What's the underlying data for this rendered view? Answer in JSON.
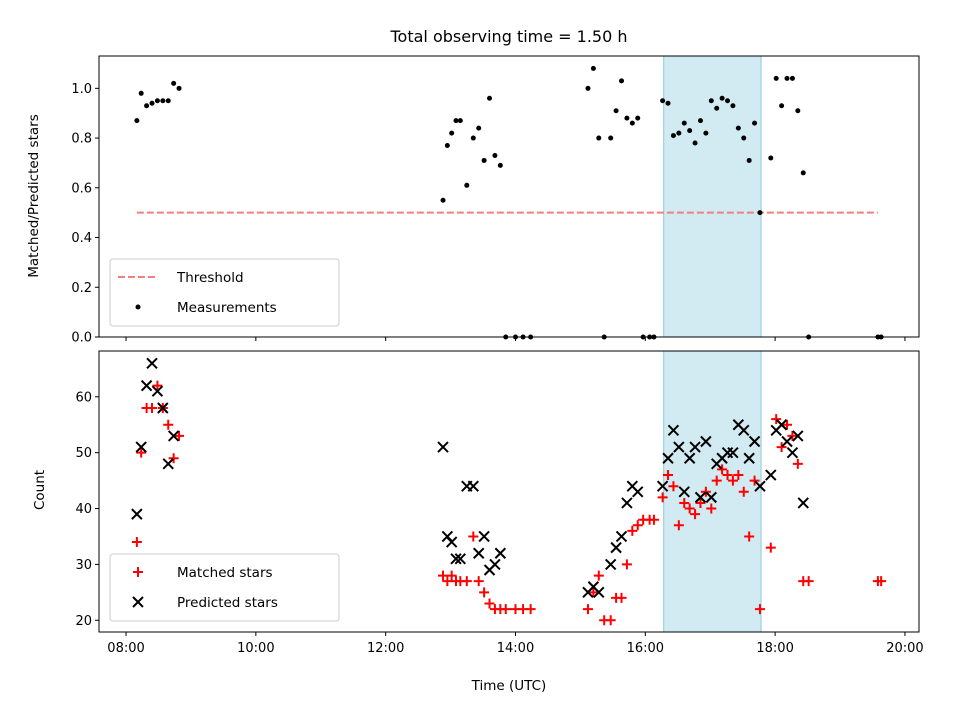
{
  "chart_data": [
    {
      "type": "scatter",
      "title": "Total observing time = 1.50 h",
      "ylabel": "Matched/Predicted stars",
      "xlabel": "",
      "xlim": [
        "07:35",
        "20:13"
      ],
      "ylim": [
        0.0,
        1.13
      ],
      "x_ticks": [
        "08:00",
        "10:00",
        "12:00",
        "14:00",
        "16:00",
        "18:00",
        "20:00"
      ],
      "y_ticks": [
        "0.0",
        "0.2",
        "0.4",
        "0.6",
        "0.8",
        "1.0"
      ],
      "legend_position": "lower-left",
      "shaded_interval": {
        "start": "16:17",
        "end": "17:47",
        "color": "#add8e6"
      },
      "series": [
        {
          "name": "Threshold",
          "style": "dashed-line",
          "color": "#f08080",
          "points": [
            [
              "08:10",
              0.5
            ],
            [
              "19:35",
              0.5
            ]
          ]
        },
        {
          "name": "Measurements",
          "style": "dot",
          "color": "#000000",
          "points": [
            [
              "08:10",
              0.87
            ],
            [
              "08:14",
              0.98
            ],
            [
              "08:19",
              0.93
            ],
            [
              "08:24",
              0.94
            ],
            [
              "08:29",
              0.95
            ],
            [
              "08:34",
              0.95
            ],
            [
              "08:39",
              0.95
            ],
            [
              "08:44",
              1.02
            ],
            [
              "08:49",
              1.0
            ],
            [
              "12:53",
              0.55
            ],
            [
              "12:57",
              0.77
            ],
            [
              "13:01",
              0.82
            ],
            [
              "13:05",
              0.87
            ],
            [
              "13:09",
              0.87
            ],
            [
              "13:15",
              0.61
            ],
            [
              "13:21",
              0.8
            ],
            [
              "13:26",
              0.84
            ],
            [
              "13:31",
              0.71
            ],
            [
              "13:36",
              0.96
            ],
            [
              "13:41",
              0.73
            ],
            [
              "13:46",
              0.69
            ],
            [
              "13:51",
              0.0
            ],
            [
              "14:00",
              0.0
            ],
            [
              "14:07",
              0.0
            ],
            [
              "14:14",
              0.0
            ],
            [
              "15:07",
              1.0
            ],
            [
              "15:12",
              1.08
            ],
            [
              "15:17",
              0.8
            ],
            [
              "15:22",
              0.0
            ],
            [
              "15:28",
              0.8
            ],
            [
              "15:33",
              0.91
            ],
            [
              "15:38",
              1.03
            ],
            [
              "15:43",
              0.88
            ],
            [
              "15:48",
              0.86
            ],
            [
              "15:53",
              0.88
            ],
            [
              "15:58",
              0.0
            ],
            [
              "16:04",
              0.0
            ],
            [
              "16:08",
              0.0
            ],
            [
              "16:16",
              0.95
            ],
            [
              "16:21",
              0.94
            ],
            [
              "16:26",
              0.81
            ],
            [
              "16:31",
              0.82
            ],
            [
              "16:36",
              0.86
            ],
            [
              "16:41",
              0.83
            ],
            [
              "16:46",
              0.78
            ],
            [
              "16:51",
              0.87
            ],
            [
              "16:56",
              0.82
            ],
            [
              "17:01",
              0.95
            ],
            [
              "17:06",
              0.92
            ],
            [
              "17:11",
              0.96
            ],
            [
              "17:16",
              0.95
            ],
            [
              "17:21",
              0.93
            ],
            [
              "17:26",
              0.84
            ],
            [
              "17:31",
              0.8
            ],
            [
              "17:36",
              0.71
            ],
            [
              "17:41",
              0.86
            ],
            [
              "17:46",
              0.5
            ],
            [
              "17:56",
              0.72
            ],
            [
              "18:01",
              1.04
            ],
            [
              "18:06",
              0.93
            ],
            [
              "18:11",
              1.04
            ],
            [
              "18:16",
              1.04
            ],
            [
              "18:21",
              0.91
            ],
            [
              "18:26",
              0.66
            ],
            [
              "18:31",
              0.0
            ],
            [
              "19:35",
              0.0
            ],
            [
              "19:38",
              0.0
            ]
          ]
        }
      ]
    },
    {
      "type": "scatter",
      "title": "",
      "ylabel": "Count",
      "xlabel": "Time (UTC)",
      "xlim": [
        "07:35",
        "20:13"
      ],
      "ylim": [
        17.9,
        68.2
      ],
      "x_ticks": [
        "08:00",
        "10:00",
        "12:00",
        "14:00",
        "16:00",
        "18:00",
        "20:00"
      ],
      "y_ticks": [
        "20",
        "30",
        "40",
        "50",
        "60"
      ],
      "legend_position": "lower-left",
      "shaded_interval": {
        "start": "16:17",
        "end": "17:47",
        "color": "#add8e6"
      },
      "series": [
        {
          "name": "Matched stars",
          "marker": "plus",
          "color": "#ff0000",
          "points": [
            [
              "08:10",
              34
            ],
            [
              "08:14",
              50
            ],
            [
              "08:19",
              58
            ],
            [
              "08:24",
              58
            ],
            [
              "08:29",
              62
            ],
            [
              "08:34",
              58
            ],
            [
              "08:39",
              55
            ],
            [
              "08:44",
              49
            ],
            [
              "08:49",
              53
            ],
            [
              "12:53",
              28
            ],
            [
              "12:57",
              27
            ],
            [
              "13:01",
              28
            ],
            [
              "13:05",
              27
            ],
            [
              "13:09",
              27
            ],
            [
              "13:15",
              27
            ],
            [
              "13:21",
              35
            ],
            [
              "13:26",
              27
            ],
            [
              "13:31",
              25
            ],
            [
              "13:36",
              23
            ],
            [
              "13:41",
              22
            ],
            [
              "13:46",
              22
            ],
            [
              "13:51",
              22
            ],
            [
              "14:00",
              22
            ],
            [
              "14:07",
              22
            ],
            [
              "14:14",
              22
            ],
            [
              "15:07",
              22
            ],
            [
              "15:12",
              25
            ],
            [
              "15:17",
              28
            ],
            [
              "15:22",
              20
            ],
            [
              "15:28",
              20
            ],
            [
              "15:33",
              24
            ],
            [
              "15:38",
              24
            ],
            [
              "15:43",
              30
            ],
            [
              "15:48",
              36
            ],
            [
              "15:53",
              37
            ],
            [
              "15:58",
              38
            ],
            [
              "16:04",
              38
            ],
            [
              "16:08",
              38
            ],
            [
              "16:16",
              42
            ],
            [
              "16:21",
              46
            ],
            [
              "16:26",
              44
            ],
            [
              "16:31",
              37
            ],
            [
              "16:36",
              41
            ],
            [
              "16:41",
              40
            ],
            [
              "16:46",
              39
            ],
            [
              "16:51",
              41
            ],
            [
              "16:56",
              43
            ],
            [
              "17:01",
              40
            ],
            [
              "17:06",
              45
            ],
            [
              "17:11",
              47
            ],
            [
              "17:16",
              46
            ],
            [
              "17:21",
              45
            ],
            [
              "17:26",
              46
            ],
            [
              "17:31",
              43
            ],
            [
              "17:36",
              35
            ],
            [
              "17:41",
              45
            ],
            [
              "17:46",
              22
            ],
            [
              "17:56",
              33
            ],
            [
              "18:01",
              56
            ],
            [
              "18:06",
              51
            ],
            [
              "18:11",
              55
            ],
            [
              "18:16",
              53
            ],
            [
              "18:21",
              48
            ],
            [
              "18:26",
              27
            ],
            [
              "18:31",
              27
            ],
            [
              "19:35",
              27
            ],
            [
              "19:38",
              27
            ]
          ]
        },
        {
          "name": "Predicted stars",
          "marker": "x",
          "color": "#000000",
          "points": [
            [
              "08:10",
              39
            ],
            [
              "08:14",
              51
            ],
            [
              "08:19",
              62
            ],
            [
              "08:24",
              66
            ],
            [
              "08:29",
              61
            ],
            [
              "08:34",
              58
            ],
            [
              "08:39",
              48
            ],
            [
              "08:44",
              53
            ],
            [
              "12:53",
              51
            ],
            [
              "12:57",
              35
            ],
            [
              "13:01",
              34
            ],
            [
              "13:05",
              31
            ],
            [
              "13:09",
              31
            ],
            [
              "13:15",
              44
            ],
            [
              "13:21",
              44
            ],
            [
              "13:26",
              32
            ],
            [
              "13:31",
              35
            ],
            [
              "13:36",
              29
            ],
            [
              "13:41",
              30
            ],
            [
              "13:46",
              32
            ],
            [
              "15:07",
              25
            ],
            [
              "15:12",
              26
            ],
            [
              "15:17",
              25
            ],
            [
              "15:28",
              30
            ],
            [
              "15:33",
              33
            ],
            [
              "15:38",
              35
            ],
            [
              "15:43",
              41
            ],
            [
              "15:48",
              44
            ],
            [
              "15:53",
              43
            ],
            [
              "16:16",
              44
            ],
            [
              "16:21",
              49
            ],
            [
              "16:26",
              54
            ],
            [
              "16:31",
              51
            ],
            [
              "16:36",
              43
            ],
            [
              "16:41",
              49
            ],
            [
              "16:46",
              51
            ],
            [
              "16:51",
              42
            ],
            [
              "16:56",
              52
            ],
            [
              "17:01",
              42
            ],
            [
              "17:06",
              48
            ],
            [
              "17:11",
              49
            ],
            [
              "17:16",
              50
            ],
            [
              "17:21",
              50
            ],
            [
              "17:26",
              55
            ],
            [
              "17:31",
              54
            ],
            [
              "17:36",
              49
            ],
            [
              "17:41",
              52
            ],
            [
              "17:46",
              44
            ],
            [
              "17:56",
              46
            ],
            [
              "18:01",
              54
            ],
            [
              "18:06",
              55
            ],
            [
              "18:11",
              52
            ],
            [
              "18:16",
              50
            ],
            [
              "18:21",
              53
            ],
            [
              "18:26",
              41
            ]
          ]
        }
      ]
    }
  ]
}
